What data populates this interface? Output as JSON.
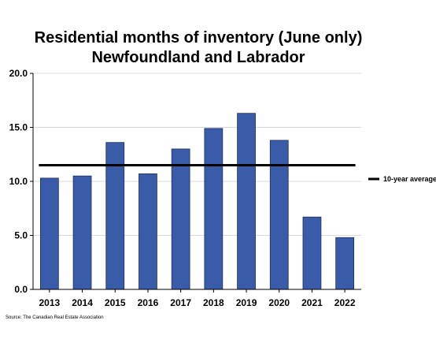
{
  "chart_data": {
    "type": "bar",
    "title": "Residential months of inventory (June only)",
    "subtitle": "Newfoundland and Labrador",
    "categories": [
      "2013",
      "2014",
      "2015",
      "2016",
      "2017",
      "2018",
      "2019",
      "2020",
      "2021",
      "2022"
    ],
    "values": [
      10.3,
      10.5,
      13.6,
      10.7,
      13.0,
      14.9,
      16.3,
      13.8,
      6.7,
      4.8
    ],
    "ylim": [
      0,
      20
    ],
    "yticks": [
      "0.0",
      "5.0",
      "10.0",
      "15.0",
      "20.0"
    ],
    "xlabel": "",
    "ylabel": "",
    "reference_line": {
      "name": "10-year average",
      "value": 11.5
    },
    "legend": {
      "position": "right",
      "entries": [
        "10-year average"
      ]
    },
    "grid": true,
    "colors": {
      "bar": "#3a5ba8",
      "bar_edge": "#1e2f5e",
      "average_line": "#000000",
      "grid": "#d9d9d9"
    },
    "source": "Source: The Canadian Real Estate Association"
  }
}
